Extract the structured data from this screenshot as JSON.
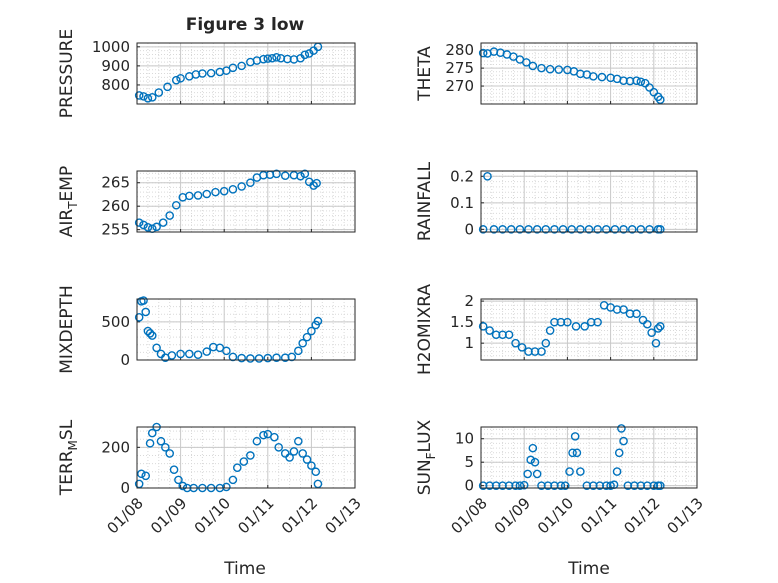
{
  "figure": {
    "title": "Figure 3 low",
    "xlabel": "Time",
    "marker_color": "#0072BD",
    "axis_color": "#262626",
    "grid_color": "#d9d9d9",
    "x_tick_labels": [
      "01/08",
      "01/09",
      "01/10",
      "01/11",
      "01/12",
      "01/13"
    ]
  },
  "chart_data": [
    {
      "type": "scatter",
      "ylabel": "PRESSURE",
      "ylabel_sub": "",
      "ylabel_tail": "",
      "xlim": [
        8,
        13
      ],
      "ylim": [
        700,
        1020
      ],
      "yticks": [
        800,
        900,
        1000
      ],
      "grid": true,
      "x": [
        8.05,
        8.15,
        8.25,
        8.35,
        8.5,
        8.7,
        8.9,
        9.0,
        9.2,
        9.35,
        9.5,
        9.7,
        9.9,
        10.05,
        10.2,
        10.4,
        10.6,
        10.75,
        10.9,
        11.0,
        11.1,
        11.2,
        11.3,
        11.45,
        11.6,
        11.75,
        11.85,
        11.95,
        12.05,
        12.15
      ],
      "y": [
        745,
        740,
        730,
        735,
        760,
        790,
        825,
        835,
        845,
        855,
        860,
        862,
        868,
        875,
        890,
        900,
        920,
        928,
        935,
        938,
        940,
        945,
        940,
        936,
        934,
        940,
        958,
        965,
        980,
        1000
      ]
    },
    {
      "type": "scatter",
      "ylabel": "THETA",
      "ylabel_sub": "",
      "ylabel_tail": "",
      "xlim": [
        8,
        13
      ],
      "ylim": [
        265,
        282
      ],
      "yticks": [
        270,
        275,
        280
      ],
      "grid": true,
      "x": [
        8.05,
        8.15,
        8.3,
        8.45,
        8.6,
        8.75,
        8.9,
        9.05,
        9.2,
        9.4,
        9.6,
        9.8,
        10.0,
        10.15,
        10.3,
        10.45,
        10.6,
        10.8,
        11.0,
        11.15,
        11.3,
        11.45,
        11.6,
        11.7,
        11.8,
        11.9,
        12.0,
        12.1,
        12.15
      ],
      "y": [
        279.2,
        279.1,
        279.6,
        279.3,
        278.8,
        278.2,
        277.4,
        276.6,
        275.6,
        275.0,
        274.7,
        274.6,
        274.5,
        274.1,
        273.4,
        273.2,
        272.7,
        272.5,
        272.3,
        272.0,
        271.5,
        271.4,
        271.5,
        271.2,
        270.8,
        269.6,
        268.3,
        267.0,
        266.2
      ]
    },
    {
      "type": "scatter",
      "ylabel": "AIR",
      "ylabel_sub": "T",
      "ylabel_tail": "EMP",
      "xlim": [
        8,
        13
      ],
      "ylim": [
        254.5,
        267.5
      ],
      "yticks": [
        255,
        260,
        265
      ],
      "grid": true,
      "x": [
        8.05,
        8.15,
        8.25,
        8.35,
        8.45,
        8.6,
        8.75,
        8.9,
        9.05,
        9.2,
        9.4,
        9.6,
        9.8,
        10.0,
        10.2,
        10.4,
        10.6,
        10.75,
        10.9,
        11.05,
        11.2,
        11.4,
        11.6,
        11.75,
        11.85,
        11.95,
        12.05,
        12.12
      ],
      "y": [
        256.5,
        256.0,
        255.5,
        255.2,
        255.6,
        256.5,
        258.0,
        260.2,
        261.9,
        262.2,
        262.3,
        262.6,
        263.0,
        263.2,
        263.6,
        264.2,
        265.0,
        266.1,
        266.6,
        266.7,
        266.9,
        266.5,
        266.6,
        266.4,
        266.9,
        265.2,
        264.4,
        264.9
      ]
    },
    {
      "type": "scatter",
      "ylabel": "RAINFALL",
      "ylabel_sub": "",
      "ylabel_tail": "",
      "xlim": [
        8,
        13
      ],
      "ylim": [
        -0.01,
        0.22
      ],
      "yticks": [
        0,
        0.1,
        0.2
      ],
      "grid": true,
      "x": [
        8.05,
        8.15,
        8.3,
        8.5,
        8.7,
        8.9,
        9.1,
        9.3,
        9.5,
        9.7,
        9.9,
        10.1,
        10.3,
        10.5,
        10.7,
        10.9,
        11.1,
        11.3,
        11.5,
        11.7,
        11.9,
        12.1,
        12.15
      ],
      "y": [
        0,
        0.2,
        0,
        0,
        0,
        0,
        0,
        0,
        0,
        0,
        0,
        0,
        0,
        0,
        0,
        0,
        0,
        0,
        0,
        0,
        0,
        0,
        0
      ]
    },
    {
      "type": "scatter",
      "ylabel": "MIXDEPTH",
      "ylabel_sub": "",
      "ylabel_tail": "",
      "xlim": [
        8,
        13
      ],
      "ylim": [
        0,
        800
      ],
      "yticks": [
        0,
        500
      ],
      "grid": true,
      "x": [
        8.05,
        8.1,
        8.15,
        8.2,
        8.25,
        8.3,
        8.35,
        8.45,
        8.55,
        8.65,
        8.8,
        9.0,
        9.2,
        9.4,
        9.6,
        9.75,
        9.9,
        10.05,
        10.2,
        10.4,
        10.6,
        10.8,
        11.0,
        11.2,
        11.4,
        11.55,
        11.7,
        11.8,
        11.9,
        12.0,
        12.1,
        12.15
      ],
      "y": [
        560,
        770,
        780,
        630,
        380,
        350,
        320,
        160,
        80,
        30,
        60,
        80,
        80,
        70,
        110,
        170,
        160,
        120,
        40,
        25,
        20,
        20,
        25,
        30,
        30,
        40,
        120,
        220,
        300,
        380,
        460,
        510
      ]
    },
    {
      "type": "scatter",
      "ylabel": "H2OMIXRA",
      "ylabel_sub": "",
      "ylabel_tail": "",
      "xlim": [
        8,
        13
      ],
      "ylim": [
        0.6,
        2.05
      ],
      "yticks": [
        1,
        1.5,
        2
      ],
      "grid": true,
      "x": [
        8.05,
        8.2,
        8.35,
        8.5,
        8.65,
        8.8,
        8.95,
        9.1,
        9.25,
        9.4,
        9.5,
        9.6,
        9.7,
        9.85,
        10.0,
        10.2,
        10.4,
        10.55,
        10.7,
        10.85,
        11.0,
        11.15,
        11.3,
        11.45,
        11.6,
        11.75,
        11.85,
        11.95,
        12.05,
        12.1,
        12.15
      ],
      "y": [
        1.4,
        1.3,
        1.2,
        1.2,
        1.2,
        1.0,
        0.9,
        0.8,
        0.8,
        0.8,
        1.0,
        1.3,
        1.5,
        1.5,
        1.5,
        1.4,
        1.4,
        1.5,
        1.5,
        1.9,
        1.85,
        1.8,
        1.8,
        1.7,
        1.7,
        1.55,
        1.45,
        1.25,
        1.0,
        1.35,
        1.4
      ]
    },
    {
      "type": "scatter",
      "ylabel": "TERR",
      "ylabel_sub": "M",
      "ylabel_tail": "SL",
      "xlim": [
        8,
        13
      ],
      "ylim": [
        0,
        300
      ],
      "yticks": [
        0,
        200
      ],
      "grid": true,
      "x": [
        8.05,
        8.1,
        8.2,
        8.3,
        8.35,
        8.45,
        8.55,
        8.65,
        8.75,
        8.85,
        8.95,
        9.05,
        9.15,
        9.3,
        9.5,
        9.7,
        9.9,
        10.05,
        10.2,
        10.3,
        10.45,
        10.6,
        10.75,
        10.9,
        11.0,
        11.15,
        11.25,
        11.4,
        11.5,
        11.6,
        11.7,
        11.8,
        11.9,
        12.0,
        12.1,
        12.15
      ],
      "y": [
        20,
        70,
        60,
        220,
        270,
        300,
        230,
        200,
        170,
        90,
        40,
        10,
        0,
        0,
        0,
        0,
        0,
        5,
        40,
        100,
        130,
        160,
        230,
        260,
        265,
        250,
        200,
        170,
        150,
        180,
        230,
        170,
        140,
        110,
        80,
        20
      ]
    },
    {
      "type": "scatter",
      "ylabel": "SUN",
      "ylabel_sub": "F",
      "ylabel_tail": "LUX",
      "xlim": [
        8,
        13
      ],
      "ylim": [
        -0.5,
        12.5
      ],
      "yticks": [
        0,
        5,
        10
      ],
      "grid": true,
      "x": [
        8.05,
        8.2,
        8.35,
        8.5,
        8.65,
        8.8,
        8.9,
        9.0,
        9.08,
        9.15,
        9.2,
        9.25,
        9.3,
        9.4,
        9.55,
        9.7,
        9.85,
        9.95,
        10.05,
        10.12,
        10.18,
        10.22,
        10.3,
        10.45,
        10.6,
        10.75,
        10.9,
        11.0,
        11.08,
        11.15,
        11.2,
        11.25,
        11.3,
        11.4,
        11.55,
        11.7,
        11.85,
        12.0,
        12.1,
        12.15
      ],
      "y": [
        0,
        0,
        0,
        0,
        0,
        0,
        0,
        0.1,
        2.5,
        5.5,
        8,
        5,
        2.5,
        0,
        0,
        0,
        0,
        0,
        3,
        7,
        10.5,
        7,
        3,
        0,
        0,
        0,
        0,
        0,
        0.2,
        3,
        7,
        12.2,
        9.5,
        0,
        0,
        0,
        0,
        0,
        0,
        0
      ]
    }
  ]
}
